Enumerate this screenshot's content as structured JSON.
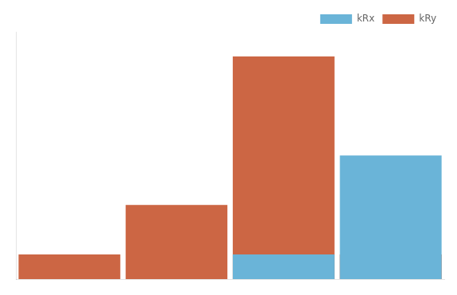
{
  "chart_data": {
    "type": "bar",
    "x": [
      1,
      2,
      3,
      4
    ],
    "series": [
      {
        "name": "kRx",
        "color": "#6ab4d8",
        "values": [
          0,
          0,
          1,
          5
        ]
      },
      {
        "name": "kRy",
        "color": "#cc6644",
        "values": [
          1,
          3,
          9,
          1
        ]
      }
    ],
    "xlim": [
      0.5,
      4.5
    ],
    "xticks": [],
    "ylim": [
      0,
      10
    ],
    "yticks": [],
    "grid": false,
    "legend": "upper right",
    "tick_labels": false
  }
}
